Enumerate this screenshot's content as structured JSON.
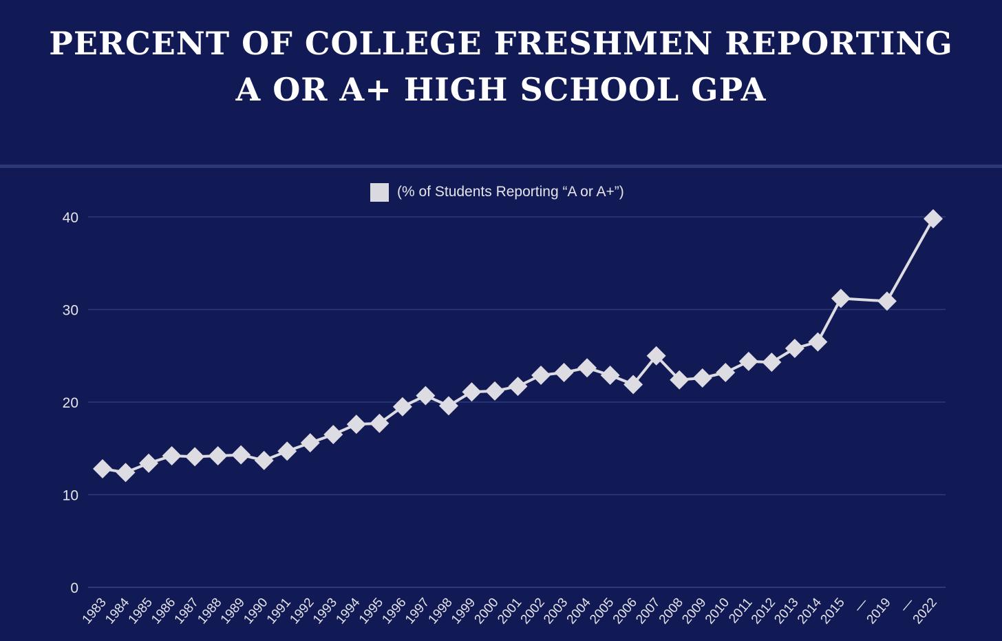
{
  "title_lines": [
    "PERCENT OF COLLEGE FRESHMEN REPORTING",
    "A OR A+ HIGH SCHOOL GPA"
  ],
  "colors": {
    "background": "#121a55",
    "gridline": "#2e3a7c",
    "series": "#dcdce2",
    "text": "#e4e4ea"
  },
  "chart_data": {
    "type": "line",
    "title": "PERCENT OF COLLEGE FRESHMEN REPORTING A OR A+ HIGH SCHOOL GPA",
    "xlabel": "",
    "ylabel": "",
    "ylim": [
      0,
      40
    ],
    "yticks": [
      0,
      10,
      20,
      30,
      40
    ],
    "grid": true,
    "legend_position": "top-center",
    "marker": "diamond",
    "categories": [
      "1983",
      "1984",
      "1985",
      "1986",
      "1987",
      "1988",
      "1989",
      "1990",
      "1991",
      "1992",
      "1993",
      "1994",
      "1995",
      "1996",
      "1997",
      "1998",
      "1999",
      "2000",
      "2001",
      "2002",
      "2003",
      "2004",
      "2005",
      "2006",
      "2007",
      "2008",
      "2009",
      "2010",
      "2011",
      "2012",
      "2013",
      "2014",
      "2015",
      "—",
      "2019",
      "—",
      "2022"
    ],
    "series": [
      {
        "name": "(% of Students Reporting “A or A+”)",
        "values": [
          12.8,
          12.4,
          13.4,
          14.2,
          14.1,
          14.2,
          14.3,
          13.7,
          14.7,
          15.6,
          16.5,
          17.6,
          17.7,
          19.5,
          20.7,
          19.6,
          21.1,
          21.2,
          21.7,
          22.9,
          23.2,
          23.7,
          22.9,
          21.9,
          25.0,
          22.4,
          22.6,
          23.2,
          24.4,
          24.3,
          25.8,
          26.5,
          31.2,
          null,
          30.9,
          null,
          39.8
        ]
      }
    ]
  }
}
